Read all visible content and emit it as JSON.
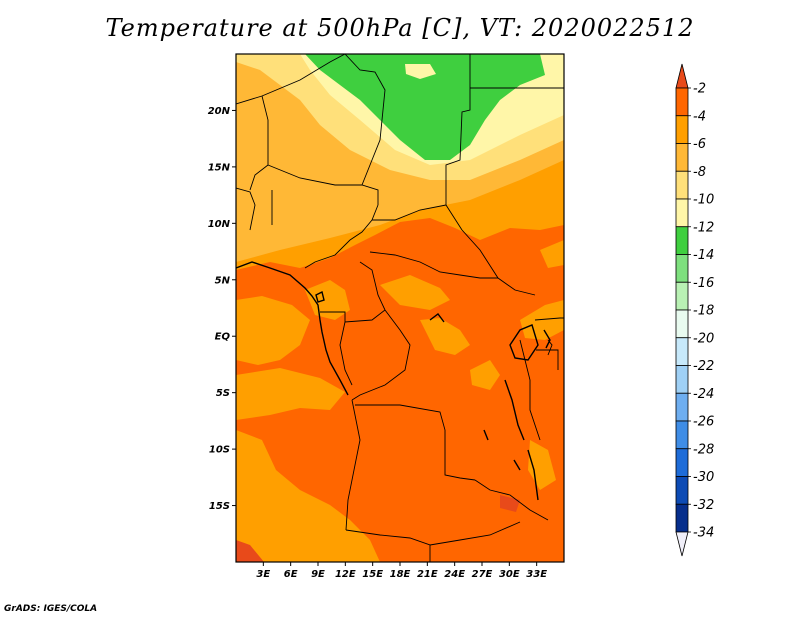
{
  "title": "Temperature at 500hPa [C], VT: 2020022512",
  "credit": "GrADS: IGES/COLA",
  "map": {
    "lon_range": [
      0,
      36
    ],
    "lat_range": [
      -20,
      25
    ],
    "y_ticks": [
      {
        "lat": 20,
        "label": "20N"
      },
      {
        "lat": 15,
        "label": "15N"
      },
      {
        "lat": 10,
        "label": "10N"
      },
      {
        "lat": 5,
        "label": "5N"
      },
      {
        "lat": 0,
        "label": "EQ"
      },
      {
        "lat": -5,
        "label": "5S"
      },
      {
        "lat": -10,
        "label": "10S"
      },
      {
        "lat": -15,
        "label": "15S"
      }
    ],
    "x_ticks": [
      {
        "lon": 3,
        "label": "3E"
      },
      {
        "lon": 6,
        "label": "6E"
      },
      {
        "lon": 9,
        "label": "9E"
      },
      {
        "lon": 12,
        "label": "12E"
      },
      {
        "lon": 15,
        "label": "15E"
      },
      {
        "lon": 18,
        "label": "18E"
      },
      {
        "lon": 21,
        "label": "21E"
      },
      {
        "lon": 24,
        "label": "24E"
      },
      {
        "lon": 27,
        "label": "27E"
      },
      {
        "lon": 30,
        "label": "30E"
      },
      {
        "lon": 33,
        "label": "33E"
      }
    ]
  },
  "colorbar": {
    "labels": [
      "-2",
      "-4",
      "-6",
      "-8",
      "-10",
      "-12",
      "-14",
      "-16",
      "-18",
      "-20",
      "-22",
      "-24",
      "-26",
      "-28",
      "-30",
      "-32",
      "-34"
    ],
    "colors": [
      "#e84a1a",
      "#ff6600",
      "#ff9f00",
      "#ffb836",
      "#ffe07a",
      "#fff6a8",
      "#3fcf3f",
      "#7ee07e",
      "#b9f1b4",
      "#e9fbf0",
      "#c7e9fb",
      "#9fd0f5",
      "#6eaef0",
      "#3f8de6",
      "#1e6cd8",
      "#0d4bb5",
      "#062e8c",
      "#f0eff9"
    ]
  }
}
